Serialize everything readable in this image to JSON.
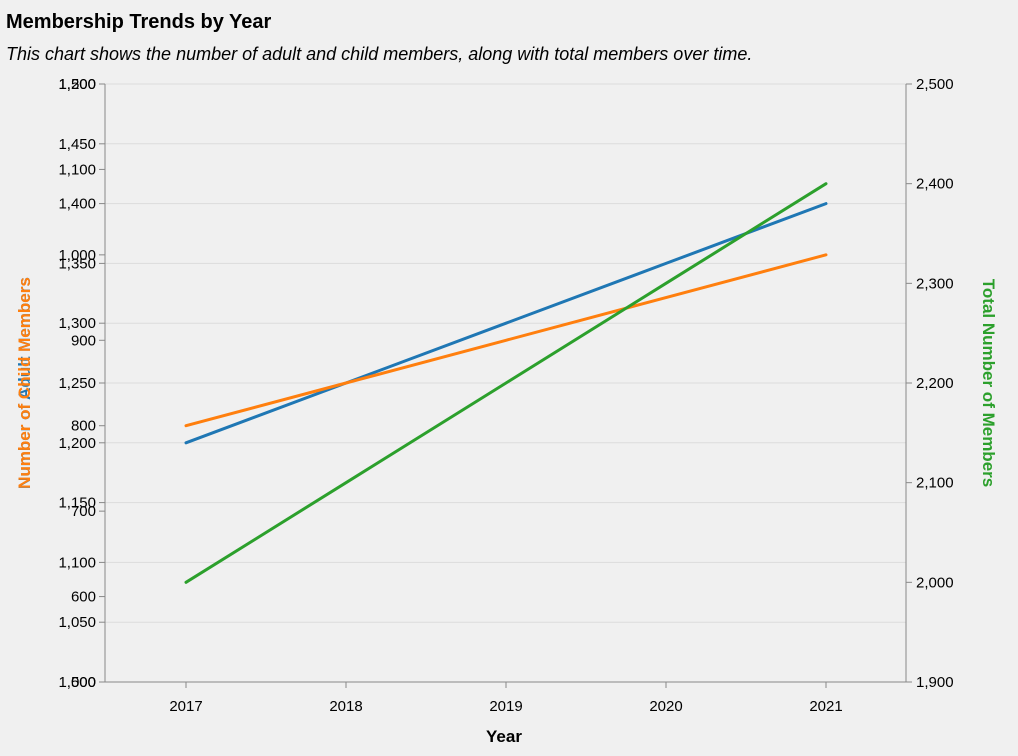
{
  "chart_data": {
    "type": "line",
    "title": "Membership Trends by Year",
    "subtitle": "This chart shows the number of adult and child members, along with total members over time.",
    "xlabel": "Year",
    "x": [
      "2017",
      "2018",
      "2019",
      "2020",
      "2021"
    ],
    "y_left_label": "Number of Adult Members",
    "y_left_outer_label": "Number of Child Members",
    "y_right_label": "Total Number of Members",
    "axes": {
      "adult": {
        "ylim": [
          1000,
          1500
        ],
        "ticks": [
          1000,
          1050,
          1100,
          1150,
          1200,
          1250,
          1300,
          1350,
          1400,
          1450,
          1500
        ],
        "color": "#1f77b4"
      },
      "child": {
        "ylim": [
          500,
          1200
        ],
        "ticks": [
          500,
          600,
          700,
          800,
          900,
          1000,
          1100,
          1200
        ],
        "color": "#ff7f0e"
      },
      "total": {
        "ylim": [
          1900,
          2500
        ],
        "ticks": [
          1900,
          2000,
          2100,
          2200,
          2300,
          2400,
          2500
        ],
        "color": "#2ca02c"
      }
    },
    "series": [
      {
        "key": "adult",
        "values": [
          1200,
          1250,
          1300,
          1350,
          1400
        ],
        "color": "#1f77b4"
      },
      {
        "key": "child",
        "values": [
          800,
          850,
          900,
          950,
          1000
        ],
        "color": "#ff7f0e"
      },
      {
        "key": "total",
        "values": [
          2000,
          2100,
          2200,
          2300,
          2400
        ],
        "color": "#2ca02c"
      }
    ],
    "grid": true
  }
}
